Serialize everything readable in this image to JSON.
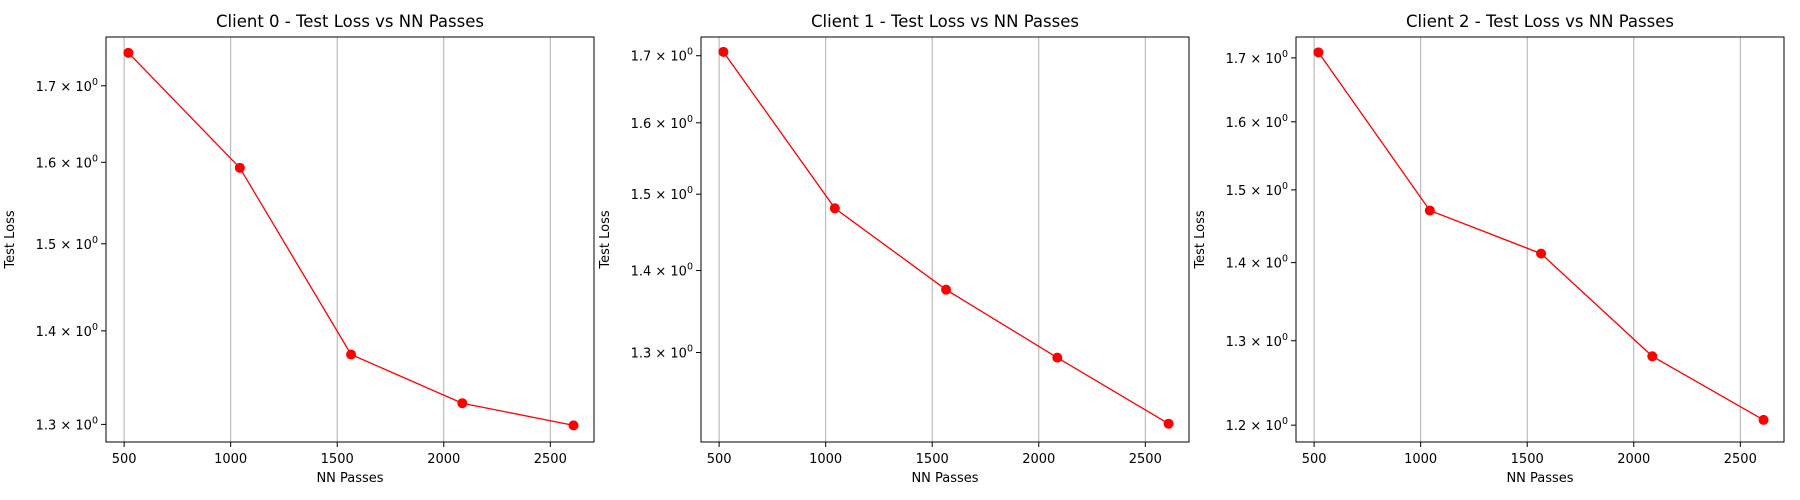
{
  "chart_data": [
    {
      "type": "line",
      "title": "Client 0 - Test Loss vs NN Passes",
      "xlabel": "NN Passes",
      "ylabel": "Test Loss",
      "yscale": "log",
      "xlim": [
        415,
        2705
      ],
      "ylim": [
        1.282,
        1.767
      ],
      "x_ticks": [
        500,
        1000,
        1500,
        2000,
        2500
      ],
      "y_ticks": [
        {
          "value": 1.3,
          "label": "1.3 × 10^0"
        },
        {
          "value": 1.4,
          "label": "1.4 × 10^0"
        },
        {
          "value": 1.5,
          "label": "1.5 × 10^0"
        },
        {
          "value": 1.6,
          "label": "1.6 × 10^0"
        },
        {
          "value": 1.7,
          "label": "1.7 × 10^0"
        }
      ],
      "grid": "x",
      "color": "#ff0000",
      "x": [
        520,
        1043,
        1565,
        2087,
        2609
      ],
      "values": [
        1.745,
        1.593,
        1.374,
        1.322,
        1.299
      ]
    },
    {
      "type": "line",
      "title": "Client 1 - Test Loss vs NN Passes",
      "xlabel": "NN Passes",
      "ylabel": "Test Loss",
      "yscale": "log",
      "xlim": [
        415,
        2705
      ],
      "ylim": [
        1.199,
        1.729
      ],
      "x_ticks": [
        500,
        1000,
        1500,
        2000,
        2500
      ],
      "y_ticks": [
        {
          "value": 1.3,
          "label": "1.3 × 10^0"
        },
        {
          "value": 1.4,
          "label": "1.4 × 10^0"
        },
        {
          "value": 1.5,
          "label": "1.5 × 10^0"
        },
        {
          "value": 1.6,
          "label": "1.6 × 10^0"
        },
        {
          "value": 1.7,
          "label": "1.7 × 10^0"
        }
      ],
      "grid": "x",
      "color": "#ff0000",
      "x": [
        520,
        1043,
        1565,
        2087,
        2609
      ],
      "values": [
        1.706,
        1.481,
        1.376,
        1.294,
        1.219
      ]
    },
    {
      "type": "line",
      "title": "Client 2 - Test Loss vs NN Passes",
      "xlabel": "NN Passes",
      "ylabel": "Test Loss",
      "yscale": "log",
      "xlim": [
        415,
        2705
      ],
      "ylim": [
        1.181,
        1.734
      ],
      "x_ticks": [
        500,
        1000,
        1500,
        2000,
        2500
      ],
      "y_ticks": [
        {
          "value": 1.2,
          "label": "1.2 × 10^0"
        },
        {
          "value": 1.3,
          "label": "1.3 × 10^0"
        },
        {
          "value": 1.4,
          "label": "1.4 × 10^0"
        },
        {
          "value": 1.5,
          "label": "1.5 × 10^0"
        },
        {
          "value": 1.6,
          "label": "1.6 × 10^0"
        },
        {
          "value": 1.7,
          "label": "1.7 × 10^0"
        }
      ],
      "grid": "x",
      "color": "#ff0000",
      "x": [
        520,
        1043,
        1565,
        2087,
        2609
      ],
      "values": [
        1.709,
        1.471,
        1.412,
        1.281,
        1.206
      ]
    }
  ]
}
